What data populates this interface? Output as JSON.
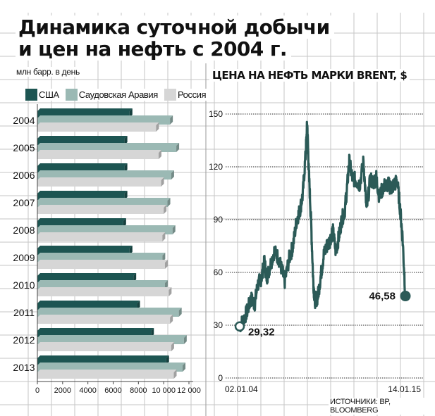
{
  "title_line1": "Динамика суточной добычи",
  "title_line2": "и цен на нефть с 2004 г.",
  "source": "ИСТОЧНИКИ: BP, BLOOMBERG",
  "colors": {
    "usa": "#1d5552",
    "saudi": "#9bb9b4",
    "russia": "#d6d6d6",
    "line": "#2b5a57"
  },
  "chart_data": [
    {
      "type": "bar",
      "orientation": "horizontal",
      "ylabel": "млн барр. в день",
      "categories": [
        "2004",
        "2005",
        "2006",
        "2007",
        "2008",
        "2009",
        "2010",
        "2011",
        "2012",
        "2013"
      ],
      "series": [
        {
          "name": "США",
          "values": [
            7300,
            6900,
            6900,
            6900,
            6800,
            7300,
            7600,
            7900,
            9000,
            10200
          ]
        },
        {
          "name": "Саудовская Аравия",
          "values": [
            10500,
            11000,
            10600,
            10300,
            10700,
            9900,
            10100,
            11200,
            11600,
            11500
          ]
        },
        {
          "name": "Россия",
          "values": [
            9400,
            9600,
            9800,
            10000,
            9900,
            10100,
            10400,
            10500,
            10600,
            10800
          ]
        }
      ],
      "xlim": [
        0,
        12000
      ],
      "xticks": [
        "0",
        "2000",
        "4000",
        "6000",
        "8000",
        "10 000",
        "12 000"
      ],
      "xtick_values": [
        0,
        2000,
        4000,
        6000,
        8000,
        10000,
        12000
      ]
    },
    {
      "type": "line",
      "title": "ЦЕНА НА НЕФТЬ МАРКИ BRENT, $",
      "ylim": [
        0,
        150
      ],
      "yticks": [
        "0",
        "30",
        "60",
        "90",
        "120",
        "150"
      ],
      "ytick_values": [
        0,
        30,
        60,
        90,
        120,
        150
      ],
      "x_start_label": "02.01.04",
      "x_end_label": "14.01.15",
      "start_value_label": "29,32",
      "end_value_label": "46,58",
      "x_range": [
        2004.0,
        2015.04
      ],
      "series": [
        {
          "name": "Brent",
          "x": [
            2004.0,
            2004.25,
            2004.5,
            2004.75,
            2005.0,
            2005.2,
            2005.45,
            2005.65,
            2005.8,
            2006.0,
            2006.3,
            2006.6,
            2006.85,
            2007.0,
            2007.3,
            2007.55,
            2007.8,
            2008.0,
            2008.2,
            2008.4,
            2008.5,
            2008.6,
            2008.75,
            2008.9,
            2009.0,
            2009.2,
            2009.4,
            2009.6,
            2009.8,
            2010.0,
            2010.2,
            2010.4,
            2010.6,
            2010.8,
            2011.0,
            2011.15,
            2011.3,
            2011.5,
            2011.75,
            2012.0,
            2012.25,
            2012.45,
            2012.7,
            2012.9,
            2013.1,
            2013.3,
            2013.6,
            2013.9,
            2014.1,
            2014.3,
            2014.5,
            2014.7,
            2014.85,
            2015.04
          ],
          "values": [
            29.32,
            33,
            38,
            45,
            42,
            53,
            57,
            66,
            57,
            63,
            72,
            68,
            60,
            55,
            68,
            75,
            90,
            95,
            104,
            128,
            145,
            118,
            90,
            55,
            44,
            46,
            58,
            70,
            75,
            78,
            84,
            72,
            80,
            90,
            95,
            108,
            123,
            114,
            112,
            110,
            123,
            95,
            113,
            111,
            114,
            103,
            109,
            110,
            108,
            110,
            112,
            95,
            80,
            46.58
          ]
        }
      ]
    }
  ]
}
